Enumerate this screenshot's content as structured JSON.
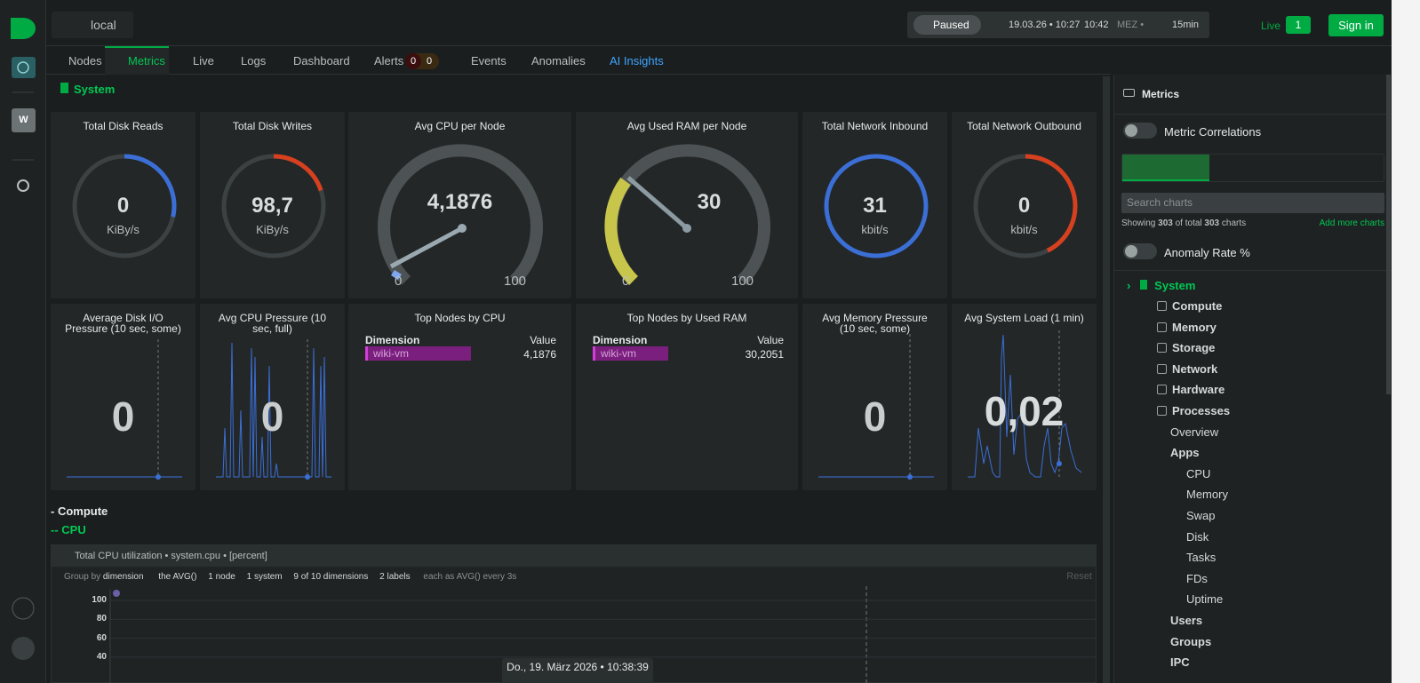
{
  "topbar": {
    "space": "local",
    "status": "Paused",
    "range_start": "19.03.26 • 10:27",
    "range_end": "10:42",
    "timezone": "MEZ •",
    "duration": "15min",
    "live_label": "Live",
    "live_count": 1,
    "sign_in": "Sign in"
  },
  "left_rail": {
    "workspace": "W"
  },
  "tabs": [
    "Nodes",
    "Metrics",
    "Live",
    "Logs",
    "Dashboard",
    "Alerts",
    "Events",
    "Anomalies",
    "AI Insights"
  ],
  "alert_counts": [
    0,
    0
  ],
  "section": {
    "title": "System"
  },
  "row1": [
    {
      "title": "Total Disk Reads",
      "value": 0,
      "unit": "KiBy/s"
    },
    {
      "title": "Total Disk Writes",
      "value": "98,7",
      "unit": "KiBy/s"
    },
    {
      "title": "Avg CPU per Node",
      "value": "4,1876",
      "min": 0,
      "max": 100
    },
    {
      "title": "Avg Used RAM per Node",
      "value": 30,
      "min": 0,
      "max": 100
    },
    {
      "title": "Total Network Inbound",
      "value": 31,
      "unit": "kbit/s"
    },
    {
      "title": "Total Network Outbound",
      "value": 0,
      "unit": "kbit/s"
    }
  ],
  "row2": [
    {
      "title": "Average Disk I/O Pressure (10 sec, some)",
      "value": 0
    },
    {
      "title": "Avg CPU Pressure (10 sec, full)",
      "value": 0
    },
    {
      "title": "Top Nodes by CPU",
      "columns": [
        "Dimension",
        "Value"
      ],
      "rows": [
        [
          "wiki-vm",
          "4,1876"
        ]
      ]
    },
    {
      "title": "Top Nodes by Used RAM",
      "columns": [
        "Dimension",
        "Value"
      ],
      "rows": [
        [
          "wiki-vm",
          "30,2051"
        ]
      ]
    },
    {
      "title": "Avg Memory Pressure (10 sec, some)",
      "value": 0
    },
    {
      "title": "Avg System Load (1 min)",
      "value": "0,02"
    }
  ],
  "compute": {
    "heading": "- Compute",
    "cpu_heading": "-- CPU",
    "chart": {
      "title": "Total CPU utilization • system.cpu • [percent]",
      "controls": [
        "Group by",
        "dimension",
        "the AVG()",
        "1 node",
        "1 system",
        "9 of 10 dimensions",
        "2 labels",
        "each as AVG()",
        "every 3s"
      ],
      "reset": "Reset",
      "yticks": [
        100,
        80,
        60,
        40
      ]
    },
    "tooltip": "Do., 19. März 2026 • 10:38:39"
  },
  "right_panel": {
    "title": "Metrics",
    "metric_correlations": "Metric Correlations",
    "search_placeholder": "Search charts",
    "showing": [
      "Showing",
      "303",
      "of total",
      "303",
      "charts"
    ],
    "add_more": "Add more charts",
    "anomaly_rate": "Anomaly Rate %",
    "tree": {
      "root": "System",
      "sections": [
        "Compute",
        "Memory",
        "Storage",
        "Network",
        "Hardware",
        "Processes"
      ],
      "processes": [
        "Overview",
        "Apps"
      ],
      "apps": [
        "CPU",
        "Memory",
        "Swap",
        "Disk",
        "Tasks",
        "FDs",
        "Uptime"
      ],
      "more": [
        "Users",
        "Groups",
        "IPC"
      ]
    }
  }
}
